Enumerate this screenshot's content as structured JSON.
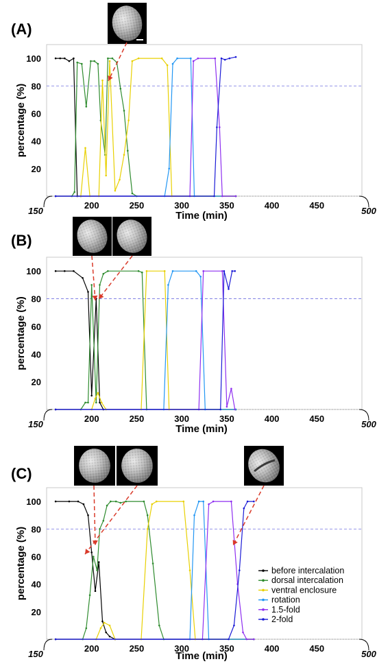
{
  "chart_data": [
    {
      "panel": "(A)",
      "type": "line",
      "xlabel": "Time (min)",
      "ylabel": "percentage (%)",
      "x_start_label": "150",
      "x_end_label": "500",
      "x_ticks": [
        "200",
        "250",
        "300",
        "350",
        "400",
        "450"
      ],
      "y_ticks": [
        "20",
        "40",
        "60",
        "80",
        "100"
      ],
      "xlim": [
        150,
        500
      ],
      "ylim": [
        0,
        110
      ],
      "reference_line": 80,
      "series": [
        {
          "color": "#000000",
          "points": [
            [
              160,
              100
            ],
            [
              165,
              100
            ],
            [
              170,
              100
            ],
            [
              175,
              98
            ],
            [
              180,
              100
            ],
            [
              184,
              0
            ],
            [
              188,
              0
            ],
            [
              360,
              0
            ]
          ]
        },
        {
          "color": "#2e8b2e",
          "points": [
            [
              160,
              0
            ],
            [
              178,
              0
            ],
            [
              181,
              3
            ],
            [
              184,
              97
            ],
            [
              189,
              96
            ],
            [
              194,
              65
            ],
            [
              199,
              98
            ],
            [
              203,
              98
            ],
            [
              207,
              96
            ],
            [
              210,
              55
            ],
            [
              215,
              30
            ],
            [
              218,
              100
            ],
            [
              223,
              100
            ],
            [
              228,
              97
            ],
            [
              232,
              78
            ],
            [
              236,
              62
            ],
            [
              240,
              33
            ],
            [
              245,
              2
            ],
            [
              250,
              0
            ],
            [
              360,
              0
            ]
          ]
        },
        {
          "color": "#e8d000",
          "points": [
            [
              160,
              0
            ],
            [
              188,
              0
            ],
            [
              193,
              35
            ],
            [
              198,
              0
            ],
            [
              208,
              0
            ],
            [
              212,
              84
            ],
            [
              216,
              15
            ],
            [
              220,
              98
            ],
            [
              226,
              4
            ],
            [
              231,
              12
            ],
            [
              236,
              30
            ],
            [
              241,
              55
            ],
            [
              245,
              98
            ],
            [
              252,
              100
            ],
            [
              278,
              100
            ],
            [
              284,
              95
            ],
            [
              289,
              0
            ],
            [
              360,
              0
            ]
          ]
        },
        {
          "color": "#2196f3",
          "points": [
            [
              160,
              0
            ],
            [
              281,
              0
            ],
            [
              286,
              20
            ],
            [
              290,
              96
            ],
            [
              295,
              100
            ],
            [
              310,
              100
            ],
            [
              314,
              0
            ],
            [
              360,
              0
            ]
          ]
        },
        {
          "color": "#8e2ef0",
          "points": [
            [
              160,
              0
            ],
            [
              309,
              0
            ],
            [
              313,
              98
            ],
            [
              318,
              100
            ],
            [
              337,
              100
            ],
            [
              342,
              50
            ],
            [
              345,
              0
            ],
            [
              360,
              0
            ]
          ]
        },
        {
          "color": "#1a1ad6",
          "points": [
            [
              160,
              0
            ],
            [
              336,
              0
            ],
            [
              339,
              50
            ],
            [
              344,
              100
            ],
            [
              348,
              99
            ],
            [
              353,
              100
            ],
            [
              360,
              101
            ]
          ]
        }
      ]
    },
    {
      "panel": "(B)",
      "type": "line",
      "xlabel": "Time (min)",
      "ylabel": "percentage (%)",
      "x_start_label": "150",
      "x_end_label": "500",
      "x_ticks": [
        "200",
        "250",
        "300",
        "350",
        "400",
        "450"
      ],
      "y_ticks": [
        "20",
        "40",
        "60",
        "80",
        "100"
      ],
      "xlim": [
        150,
        500
      ],
      "ylim": [
        0,
        110
      ],
      "reference_line": 80,
      "series": [
        {
          "color": "#000000",
          "points": [
            [
              160,
              100
            ],
            [
              170,
              100
            ],
            [
              180,
              100
            ],
            [
              190,
              95
            ],
            [
              196,
              85
            ],
            [
              200,
              10
            ],
            [
              205,
              80
            ],
            [
              209,
              5
            ],
            [
              213,
              0
            ],
            [
              360,
              0
            ]
          ]
        },
        {
          "color": "#2e8b2e",
          "points": [
            [
              160,
              0
            ],
            [
              188,
              0
            ],
            [
              193,
              5
            ],
            [
              196,
              5
            ],
            [
              200,
              90
            ],
            [
              205,
              5
            ],
            [
              209,
              90
            ],
            [
              213,
              98
            ],
            [
              218,
              100
            ],
            [
              252,
              100
            ],
            [
              256,
              99
            ],
            [
              261,
              0
            ],
            [
              360,
              0
            ]
          ]
        },
        {
          "color": "#e8d000",
          "points": [
            [
              160,
              0
            ],
            [
              200,
              0
            ],
            [
              204,
              8
            ],
            [
              207,
              12
            ],
            [
              211,
              5
            ],
            [
              216,
              0
            ],
            [
              255,
              0
            ],
            [
              261,
              100
            ],
            [
              281,
              100
            ],
            [
              286,
              0
            ],
            [
              360,
              0
            ]
          ]
        },
        {
          "color": "#2196f3",
          "points": [
            [
              160,
              0
            ],
            [
              280,
              0
            ],
            [
              285,
              90
            ],
            [
              290,
              100
            ],
            [
              316,
              100
            ],
            [
              321,
              96
            ],
            [
              326,
              0
            ],
            [
              360,
              0
            ]
          ]
        },
        {
          "color": "#8e2ef0",
          "points": [
            [
              160,
              0
            ],
            [
              319,
              0
            ],
            [
              324,
              100
            ],
            [
              345,
              100
            ],
            [
              350,
              2
            ],
            [
              355,
              15
            ],
            [
              359,
              0
            ]
          ]
        },
        {
          "color": "#1a1ad6",
          "points": [
            [
              160,
              0
            ],
            [
              343,
              0
            ],
            [
              347,
              100
            ],
            [
              352,
              87
            ],
            [
              356,
              100
            ],
            [
              359,
              100
            ]
          ]
        }
      ]
    },
    {
      "panel": "(C)",
      "type": "line",
      "xlabel": "Time (min)",
      "ylabel": "percentage (%)",
      "x_start_label": "150",
      "x_end_label": "500",
      "x_ticks": [
        "200",
        "250",
        "300",
        "350",
        "400",
        "450"
      ],
      "y_ticks": [
        "20",
        "40",
        "60",
        "80",
        "100"
      ],
      "xlim": [
        150,
        500
      ],
      "ylim": [
        0,
        110
      ],
      "reference_line": 80,
      "series": [
        {
          "color": "#000000",
          "points": [
            [
              160,
              100
            ],
            [
              175,
              100
            ],
            [
              185,
              100
            ],
            [
              191,
              98
            ],
            [
              196,
              90
            ],
            [
              200,
              63
            ],
            [
              204,
              35
            ],
            [
              208,
              56
            ],
            [
              212,
              13
            ],
            [
              216,
              5
            ],
            [
              220,
              2
            ],
            [
              226,
              0
            ],
            [
              380,
              0
            ]
          ]
        },
        {
          "color": "#2e8b2e",
          "points": [
            [
              160,
              0
            ],
            [
              190,
              0
            ],
            [
              194,
              8
            ],
            [
              198,
              32
            ],
            [
              202,
              60
            ],
            [
              206,
              50
            ],
            [
              209,
              80
            ],
            [
              213,
              86
            ],
            [
              217,
              97
            ],
            [
              221,
              100
            ],
            [
              227,
              100
            ],
            [
              232,
              99
            ],
            [
              238,
              100
            ],
            [
              258,
              100
            ],
            [
              262,
              90
            ],
            [
              268,
              55
            ],
            [
              275,
              10
            ],
            [
              280,
              0
            ],
            [
              380,
              0
            ]
          ]
        },
        {
          "color": "#e8d000",
          "points": [
            [
              160,
              0
            ],
            [
              205,
              0
            ],
            [
              210,
              8
            ],
            [
              214,
              12
            ],
            [
              220,
              10
            ],
            [
              226,
              0
            ],
            [
              255,
              0
            ],
            [
              262,
              80
            ],
            [
              267,
              98
            ],
            [
              272,
              100
            ],
            [
              302,
              100
            ],
            [
              309,
              50
            ],
            [
              315,
              0
            ],
            [
              380,
              0
            ]
          ]
        },
        {
          "color": "#2196f3",
          "points": [
            [
              160,
              0
            ],
            [
              309,
              0
            ],
            [
              314,
              90
            ],
            [
              319,
              100
            ],
            [
              324,
              100
            ],
            [
              330,
              0
            ],
            [
              380,
              0
            ]
          ]
        },
        {
          "color": "#8e2ef0",
          "points": [
            [
              160,
              0
            ],
            [
              323,
              0
            ],
            [
              330,
              98
            ],
            [
              335,
              100
            ],
            [
              355,
              100
            ],
            [
              362,
              40
            ],
            [
              368,
              5
            ],
            [
              372,
              0
            ],
            [
              380,
              0
            ]
          ]
        },
        {
          "color": "#1a1ad6",
          "points": [
            [
              160,
              0
            ],
            [
              352,
              0
            ],
            [
              358,
              10
            ],
            [
              364,
              50
            ],
            [
              369,
              95
            ],
            [
              373,
              100
            ],
            [
              380,
              100
            ]
          ]
        }
      ],
      "legend": {
        "placement": "bottom-right",
        "entries": [
          {
            "label": "before intercalation",
            "color": "#000000"
          },
          {
            "label": "dorsal intercalation",
            "color": "#2e8b2e"
          },
          {
            "label": "ventral enclosure",
            "color": "#e8d000"
          },
          {
            "label": "rotation",
            "color": "#2196f3"
          },
          {
            "label": "1.5-fold",
            "color": "#8e2ef0"
          },
          {
            "label": "2-fold",
            "color": "#1a1ad6"
          }
        ]
      }
    }
  ]
}
